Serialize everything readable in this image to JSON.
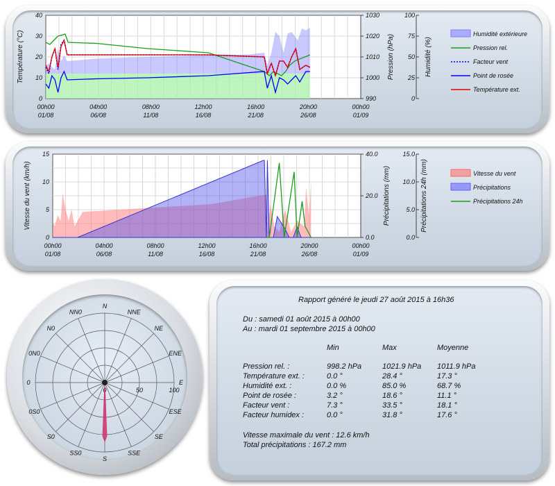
{
  "chart_data": [
    {
      "type": "area",
      "title": "",
      "x_tick_labels": [
        [
          "00h00",
          "01/08"
        ],
        [
          "04h00",
          "06/08"
        ],
        [
          "08h00",
          "11/08"
        ],
        [
          "12h00",
          "16/08"
        ],
        [
          "16h00",
          "21/08"
        ],
        [
          "20h00",
          "26/08"
        ],
        [
          "00h00",
          "01/09"
        ]
      ],
      "axes": {
        "left": {
          "label": "Température (°C)",
          "ticks": [
            "0",
            "10",
            "20",
            "30",
            "40"
          ],
          "range": [
            0,
            40
          ]
        },
        "right1": {
          "label": "Pression (hPa)",
          "ticks": [
            "990",
            "1000",
            "1010",
            "1020",
            "1030"
          ],
          "range": [
            990,
            1030
          ]
        },
        "right2": {
          "label": "Humidité (%)",
          "ticks": [
            "0",
            "25",
            "50",
            "75",
            "100"
          ],
          "range": [
            0,
            100
          ]
        }
      },
      "legend": [
        "Humidité extérieure",
        "Pression rel.",
        "Facteur vent",
        "Point de rosée",
        "Température ext."
      ],
      "series": [
        {
          "name": "Humidité extérieure",
          "axis": "right2",
          "x_days": [
            0,
            0.3,
            0.6,
            0.9,
            1.2,
            1.5,
            1.8,
            2.1,
            5,
            10,
            16,
            20,
            21.5,
            21.8,
            22.2,
            22.6,
            23,
            23.4,
            23.8,
            24.2,
            24.8,
            25.2,
            25.6,
            26
          ],
          "values": [
            30,
            30,
            30,
            30,
            30,
            30,
            30,
            30,
            30,
            30,
            30,
            30,
            30,
            30,
            30,
            30,
            30,
            30,
            30,
            30,
            30,
            30,
            30,
            30
          ]
        },
        {
          "name": "Humidité extérieure (haut)",
          "axis": "right2",
          "x_days": [
            0,
            0.3,
            0.6,
            0.9,
            1.2,
            1.5,
            1.8,
            2.1,
            5,
            10,
            16,
            20,
            21.5,
            21.8,
            22.2,
            22.6,
            23,
            23.4,
            23.8,
            24.2,
            24.8,
            25.2,
            25.6,
            26
          ],
          "values": [
            40,
            42,
            38,
            35,
            60,
            45,
            52,
            45,
            48,
            50,
            52,
            53,
            55,
            40,
            55,
            80,
            75,
            55,
            78,
            80,
            70,
            84,
            82,
            85
          ]
        },
        {
          "name": "Pression rel.",
          "axis": "right1",
          "x_days": [
            0,
            0.4,
            0.8,
            1.2,
            1.6,
            1.9,
            2.2,
            5,
            10,
            16,
            21.5,
            22,
            22.4,
            22.8,
            23.2,
            23.6,
            24,
            24.5,
            25,
            25.5,
            26
          ],
          "values": [
            1017,
            1016,
            1018,
            1020,
            1020.5,
            1021,
            1017,
            1016.5,
            1014,
            1012,
            1003,
            1001,
            1003,
            1002,
            1001,
            1003,
            1006,
            1008,
            1009,
            1010,
            1011
          ]
        },
        {
          "name": "Facteur vent",
          "axis": "left",
          "x_days": [
            0,
            0.3,
            0.6,
            0.9,
            1.2,
            1.5,
            1.8,
            2.1,
            3,
            10,
            16,
            21.5,
            21.8,
            22.2,
            22.6,
            23,
            23.4,
            23.8,
            24.2,
            24.6,
            25,
            25.6,
            26
          ],
          "values": [
            15,
            12,
            20,
            24,
            14,
            26,
            28,
            21,
            21,
            21,
            21,
            20,
            12,
            17,
            11,
            18,
            18,
            15,
            20,
            24,
            14,
            16,
            15
          ]
        },
        {
          "name": "Point de rosée",
          "axis": "left",
          "x_days": [
            0,
            0.3,
            0.6,
            0.9,
            1.2,
            1.5,
            1.8,
            2.1,
            5,
            10,
            16,
            21.5,
            21.8,
            22.2,
            22.6,
            23,
            23.4,
            23.8,
            24.2,
            24.6,
            25,
            25.6,
            26
          ],
          "values": [
            7,
            5,
            11,
            9,
            3,
            10,
            13,
            9,
            9.5,
            10,
            11,
            13,
            5,
            11,
            3,
            10,
            9,
            7,
            9,
            11,
            8,
            13,
            13
          ]
        },
        {
          "name": "Température ext.",
          "axis": "left",
          "x_days": [
            0,
            0.3,
            0.6,
            0.9,
            1.2,
            1.5,
            1.8,
            2.1,
            3,
            10,
            16,
            21.5,
            21.8,
            22.2,
            22.6,
            23,
            23.4,
            23.8,
            24.2,
            24.6,
            25,
            25.6,
            26
          ],
          "values": [
            16,
            13,
            20,
            24,
            15,
            25,
            28,
            21,
            21,
            21,
            21,
            20,
            12,
            17,
            11,
            18,
            18,
            15,
            20,
            24,
            14,
            16,
            15
          ]
        }
      ]
    },
    {
      "type": "area",
      "title": "",
      "x_tick_labels": [
        [
          "00h00",
          "01/08"
        ],
        [
          "04h00",
          "06/08"
        ],
        [
          "08h00",
          "11/08"
        ],
        [
          "12h00",
          "16/08"
        ],
        [
          "16h00",
          "21/08"
        ],
        [
          "20h00",
          "26/08"
        ],
        [
          "00h00",
          "01/09"
        ]
      ],
      "axes": {
        "left": {
          "label": "Vitesse du vent (km/h)",
          "ticks": [
            "0",
            "5",
            "10",
            "15"
          ],
          "range": [
            0,
            15
          ]
        },
        "right1": {
          "label": "Précipitations (mm)",
          "ticks": [
            "0.0",
            "20.0",
            "40.0"
          ],
          "range": [
            0,
            40
          ]
        },
        "right2": {
          "label": "Précipitations 24h (mm)",
          "ticks": [
            "0.0",
            "5.0",
            "10.0",
            "15.0"
          ],
          "range": [
            0,
            15
          ]
        }
      },
      "legend": [
        "Vitesse du vent",
        "Précipitations",
        "Précipitations 24h"
      ],
      "series": [
        {
          "name": "Vitesse du vent",
          "axis": "left",
          "x_days": [
            0,
            0.2,
            0.5,
            0.8,
            1,
            1.3,
            1.6,
            1.9,
            2.2,
            3,
            16,
            21,
            21.5,
            21.6,
            21.9,
            22.3,
            22.8,
            23.4,
            24,
            24.6,
            25.3,
            25.5,
            25.8,
            26
          ],
          "values": [
            3,
            2,
            4,
            3,
            8,
            5,
            3,
            5,
            2,
            4.6,
            6,
            7.6,
            7.7,
            1,
            6,
            2,
            1,
            5,
            1,
            3,
            2,
            9,
            4,
            10
          ]
        },
        {
          "name": "Précipitations",
          "axis": "right1",
          "x_days": [
            0,
            2.5,
            21.2,
            21.3,
            21.5,
            21.6,
            21.8,
            22.2,
            22.6,
            23.4,
            23.8,
            24.2,
            24.6,
            25,
            25.4,
            26
          ],
          "values": [
            0,
            0,
            37,
            37,
            0,
            37,
            0,
            0,
            10,
            4,
            0,
            0,
            5,
            0,
            0,
            0
          ]
        },
        {
          "name": "Précipitations 24h",
          "axis": "right2",
          "x_days": [
            21.5,
            21.8,
            22.8,
            23.3,
            24.3,
            24.6,
            25.1,
            25.4,
            26
          ],
          "values": [
            0,
            0,
            13.4,
            0,
            11.8,
            0,
            6.5,
            2,
            0
          ]
        }
      ]
    }
  ],
  "chart1": {
    "ylabel": "Température (°C)",
    "y2label": "Pression (hPa)",
    "y3label": "Humidité (%)",
    "legend": [
      {
        "label": "Humidité extérieure",
        "color": "#8080ff"
      },
      {
        "label": "Pression rel.",
        "color": "#1a9e1a"
      },
      {
        "label": "Facteur vent",
        "color": "#0000cc"
      },
      {
        "label": "Point de rosée",
        "color": "#0000ff"
      },
      {
        "label": "Température ext.",
        "color": "#e00000"
      }
    ]
  },
  "chart2": {
    "ylabel": "Vitesse du vent (km/h)",
    "y2label": "Précipitations (mm)",
    "y3label": "Précipitations 24h (mm)",
    "legend": [
      {
        "label": "Vitesse du vent",
        "color": "#ff6b6b"
      },
      {
        "label": "Précipitations",
        "color": "#6060ff"
      },
      {
        "label": "Précipitations 24h",
        "color": "#1a9e1a"
      }
    ]
  },
  "rose": {
    "directions": [
      "N",
      "NNE",
      "NE",
      "ENE",
      "E",
      "ESE",
      "SE",
      "SSE",
      "S",
      "SS0",
      "S0",
      "0S0",
      "0",
      "0N0",
      "N0",
      "NN0"
    ],
    "scale_labels": [
      "0",
      "50",
      "100"
    ],
    "values_pct": [
      0,
      0,
      0,
      0,
      0,
      0,
      0,
      0,
      85,
      0,
      0,
      0,
      0,
      0,
      0,
      0
    ],
    "color": "#d0306a"
  },
  "report": {
    "title": "Rapport généré le jeudi 27 août 2015 à 16h36",
    "from": "Du : samedi 01 août 2015 à 00h00",
    "to": "Au : mardi 01 septembre 2015 à 00h00",
    "headers": [
      "Min",
      "Max",
      "Moyenne"
    ],
    "rows": [
      {
        "label": "Pression rel. :",
        "min": "998.2 hPa",
        "max": "1021.9 hPa",
        "avg": "1011.9 hPa"
      },
      {
        "label": "Température ext. :",
        "min": "0.0 °",
        "max": "28.4 °",
        "avg": "17.3 °"
      },
      {
        "label": "Humidité ext. :",
        "min": "0.0 %",
        "max": "85.0 %",
        "avg": "68.7 %"
      },
      {
        "label": "Point de rosée :",
        "min": "3.2 °",
        "max": "18.6 °",
        "avg": "11.1 °"
      },
      {
        "label": "Facteur vent :",
        "min": "7.3 °",
        "max": "33.5 °",
        "avg": "18.1 °"
      },
      {
        "label": "Facteur humidex :",
        "min": "0.0 °",
        "max": "31.8 °",
        "avg": "17.6 °"
      }
    ],
    "wind_max": "Vitesse maximale du vent : 12.6 km/h",
    "rain_total": "Total précipitations : 167.2 mm"
  }
}
